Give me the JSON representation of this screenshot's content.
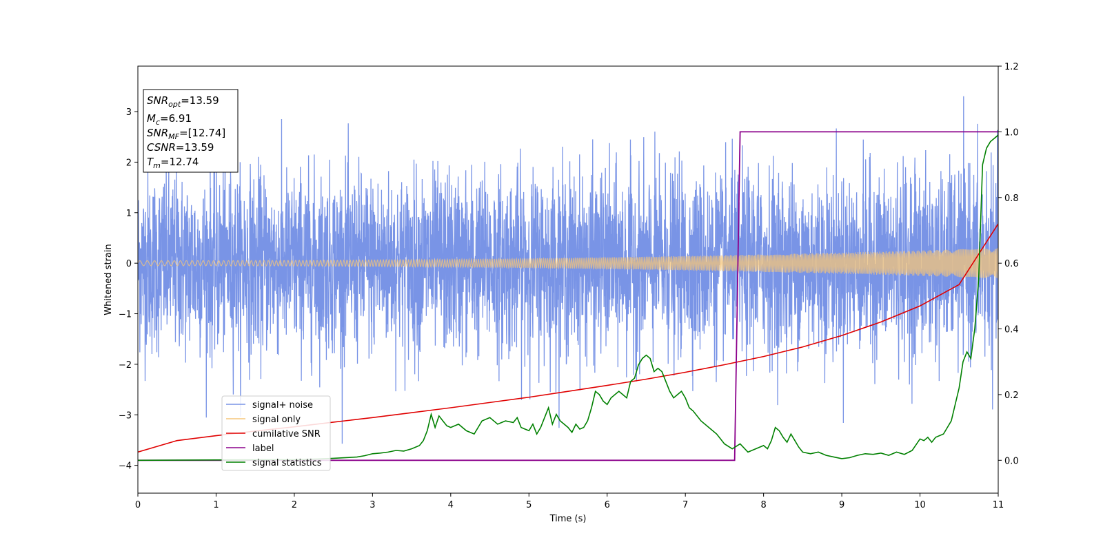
{
  "chart_data": {
    "type": "line",
    "xlabel": "Time (s)",
    "ylabel": "Whitened strain",
    "xlim": [
      0,
      11
    ],
    "ylim_left": [
      -4.55,
      3.9
    ],
    "ylim_right": [
      -0.1,
      1.2
    ],
    "x_ticks": [
      0,
      1,
      2,
      3,
      4,
      5,
      6,
      7,
      8,
      9,
      10,
      11
    ],
    "y_ticks_left": [
      -4,
      -3,
      -2,
      -1,
      0,
      1,
      2,
      3
    ],
    "y_ticks_right": [
      "0.0",
      "0.2",
      "0.4",
      "0.6",
      "0.8",
      "1.0",
      "1.2"
    ],
    "legend_position": "lower-left",
    "info_box": {
      "snr_opt": {
        "base": "SNR",
        "sub": "opt",
        "value": "=13.59"
      },
      "mc": {
        "base": "M",
        "sub": "c",
        "value": "=6.91"
      },
      "snr_mf": {
        "base": "SNR",
        "sub": "MF",
        "value": "=[12.74]"
      },
      "csnr": {
        "base": "CSNR",
        "value": "=13.59"
      },
      "tm": {
        "base": "T",
        "sub": "m",
        "value": "=12.74"
      }
    },
    "series": [
      {
        "name": "signal+ noise",
        "color": "#7994e6",
        "axis": "left",
        "description_values": {
          "noise_std": 1.1,
          "max": 3.55,
          "min": -4.18
        }
      },
      {
        "name": "signal only",
        "color": "#f5c57a",
        "axis": "left",
        "envelope_start": 0.05,
        "envelope_end": 0.3
      },
      {
        "name": "cumilative SNR",
        "color": "#e00000",
        "axis": "right",
        "x": [
          0,
          0.5,
          1,
          1.5,
          2,
          2.5,
          3,
          3.5,
          4,
          4.5,
          5,
          5.5,
          6,
          6.5,
          7,
          7.5,
          8,
          8.5,
          9,
          9.5,
          10,
          10.5,
          11
        ],
        "y": [
          0.025,
          0.06,
          0.075,
          0.089,
          0.102,
          0.116,
          0.13,
          0.145,
          0.16,
          0.176,
          0.192,
          0.21,
          0.228,
          0.247,
          0.268,
          0.291,
          0.316,
          0.345,
          0.38,
          0.421,
          0.47,
          0.535,
          0.72
        ]
      },
      {
        "name": "label",
        "color": "#8b008b",
        "axis": "right",
        "x": [
          0,
          7.63,
          7.7,
          11
        ],
        "y": [
          0,
          0,
          1,
          1
        ]
      },
      {
        "name": "signal statistics",
        "color": "#008000",
        "axis": "right",
        "x": [
          0,
          1.0,
          2.0,
          2.3,
          2.5,
          2.8,
          2.9,
          3.0,
          3.1,
          3.2,
          3.3,
          3.4,
          3.5,
          3.55,
          3.6,
          3.65,
          3.7,
          3.75,
          3.8,
          3.85,
          3.9,
          3.95,
          4.0,
          4.1,
          4.2,
          4.3,
          4.4,
          4.5,
          4.6,
          4.7,
          4.8,
          4.85,
          4.9,
          4.95,
          5.0,
          5.05,
          5.1,
          5.15,
          5.2,
          5.25,
          5.3,
          5.35,
          5.4,
          5.5,
          5.55,
          5.6,
          5.65,
          5.7,
          5.75,
          5.8,
          5.85,
          5.9,
          5.95,
          6.0,
          6.05,
          6.1,
          6.15,
          6.2,
          6.25,
          6.3,
          6.35,
          6.4,
          6.45,
          6.5,
          6.55,
          6.6,
          6.65,
          6.7,
          6.75,
          6.8,
          6.85,
          6.9,
          6.95,
          7.0,
          7.05,
          7.1,
          7.2,
          7.3,
          7.4,
          7.5,
          7.6,
          7.7,
          7.8,
          7.9,
          8.0,
          8.05,
          8.1,
          8.15,
          8.2,
          8.25,
          8.3,
          8.35,
          8.4,
          8.45,
          8.5,
          8.6,
          8.7,
          8.8,
          8.9,
          9.0,
          9.1,
          9.2,
          9.3,
          9.4,
          9.5,
          9.6,
          9.7,
          9.8,
          9.9,
          10.0,
          10.05,
          10.1,
          10.15,
          10.2,
          10.3,
          10.35,
          10.4,
          10.45,
          10.5,
          10.55,
          10.6,
          10.65,
          10.7,
          10.75,
          10.8,
          10.85,
          10.9,
          10.95,
          11.0
        ],
        "y": [
          0,
          0.001,
          0.002,
          0.004,
          0.006,
          0.01,
          0.014,
          0.02,
          0.022,
          0.025,
          0.03,
          0.028,
          0.035,
          0.04,
          0.045,
          0.06,
          0.09,
          0.14,
          0.1,
          0.135,
          0.12,
          0.105,
          0.1,
          0.11,
          0.09,
          0.08,
          0.12,
          0.13,
          0.11,
          0.12,
          0.115,
          0.13,
          0.1,
          0.095,
          0.09,
          0.11,
          0.08,
          0.1,
          0.13,
          0.16,
          0.11,
          0.14,
          0.12,
          0.1,
          0.085,
          0.11,
          0.095,
          0.1,
          0.12,
          0.16,
          0.21,
          0.2,
          0.18,
          0.17,
          0.19,
          0.2,
          0.21,
          0.2,
          0.19,
          0.24,
          0.25,
          0.29,
          0.31,
          0.32,
          0.31,
          0.27,
          0.28,
          0.27,
          0.24,
          0.21,
          0.19,
          0.2,
          0.21,
          0.19,
          0.16,
          0.15,
          0.12,
          0.1,
          0.08,
          0.05,
          0.035,
          0.05,
          0.025,
          0.035,
          0.045,
          0.035,
          0.06,
          0.1,
          0.09,
          0.07,
          0.055,
          0.08,
          0.06,
          0.04,
          0.025,
          0.02,
          0.025,
          0.015,
          0.01,
          0.005,
          0.008,
          0.015,
          0.02,
          0.018,
          0.022,
          0.015,
          0.025,
          0.018,
          0.03,
          0.065,
          0.06,
          0.07,
          0.055,
          0.07,
          0.08,
          0.1,
          0.12,
          0.17,
          0.22,
          0.3,
          0.33,
          0.31,
          0.4,
          0.55,
          0.9,
          0.95,
          0.97,
          0.98,
          0.99
        ]
      }
    ]
  }
}
